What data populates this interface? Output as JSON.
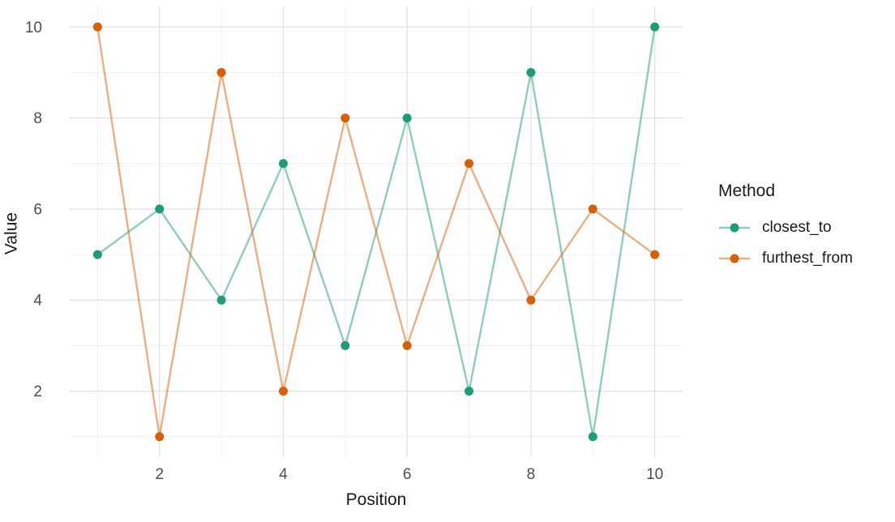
{
  "chart_data": {
    "type": "line",
    "title": "",
    "xlabel": "Position",
    "ylabel": "Value",
    "x": [
      1,
      2,
      3,
      4,
      5,
      6,
      7,
      8,
      9,
      10
    ],
    "series": [
      {
        "name": "closest_to",
        "values": [
          5,
          6,
          4,
          7,
          3,
          8,
          2,
          9,
          1,
          10
        ],
        "color": "#1B9E77"
      },
      {
        "name": "furthest_from",
        "values": [
          10,
          1,
          9,
          2,
          8,
          3,
          7,
          4,
          6,
          5
        ],
        "color": "#D95F02"
      }
    ],
    "line_alpha": 0.5,
    "x_ticks": [
      2,
      4,
      6,
      8,
      10
    ],
    "y_ticks": [
      2,
      4,
      6,
      8,
      10
    ],
    "x_minor": [
      1,
      3,
      5,
      7,
      9
    ],
    "y_minor": [
      1,
      3,
      5,
      7,
      9
    ],
    "xlim": [
      0.55,
      10.45
    ],
    "ylim": [
      0.55,
      10.45
    ],
    "grid": true,
    "legend_title": "Method",
    "legend_position": "right"
  },
  "style": {
    "background": "#FFFFFF",
    "grid_major_color": "#E2E2E2",
    "grid_minor_color": "#F0F0F0",
    "tick_label_color": "#4D4D4D",
    "axis_title_color": "#1A1A1A"
  }
}
